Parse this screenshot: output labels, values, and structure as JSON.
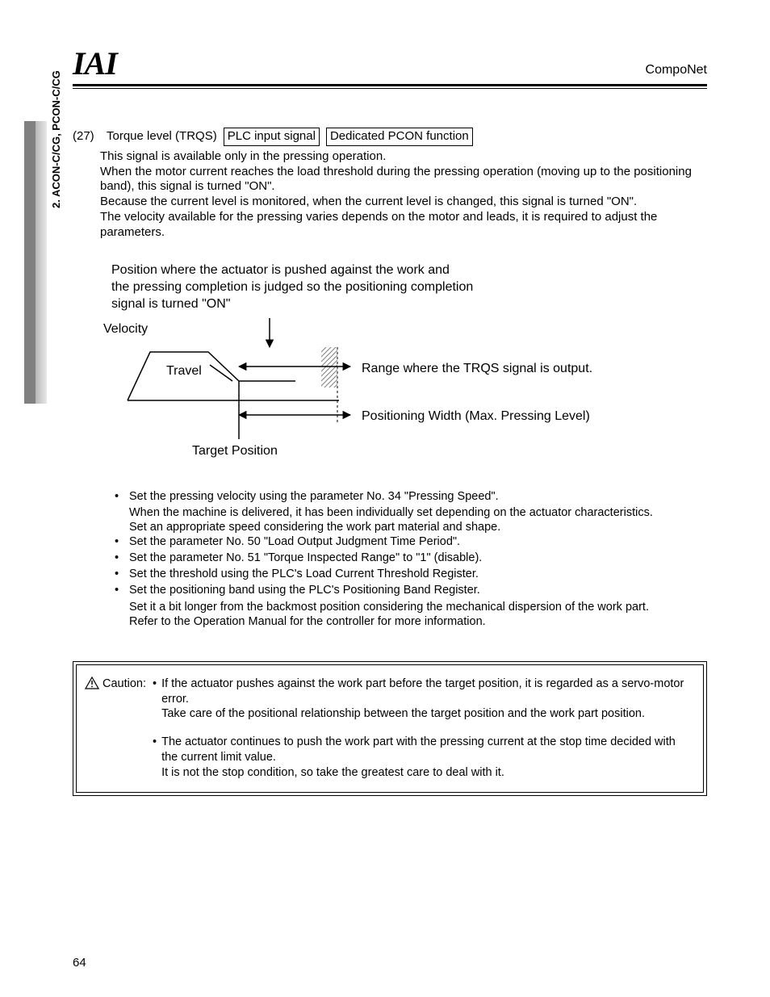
{
  "header": {
    "logo": "IAI",
    "product": "CompoNet"
  },
  "side_tab_text": "2. ACON-C/CG, PCON-C/CG",
  "section": {
    "number": "(27)",
    "title_prefix": "Torque level (TRQS)",
    "box1": "PLC input signal",
    "box2": "Dedicated PCON function",
    "paragraph": "This signal is available only in the pressing operation.\nWhen the motor current reaches the load threshold during the pressing operation (moving up to the positioning band), this signal is turned \"ON\".\nBecause the current level is monitored, when the current level is changed, this signal is turned \"ON\".\nThe velocity available for the pressing varies depends on the motor and leads, it is required to adjust the parameters."
  },
  "diagram": {
    "caption": "Position where the actuator is pushed against the work and\nthe pressing completion is judged so the positioning completion\nsignal is turned \"ON\"",
    "labels": {
      "velocity": "Velocity",
      "travel": "Travel",
      "range": "Range where the TRQS signal is output.",
      "poswidth": "Positioning Width (Max. Pressing Level)",
      "target": "Target Position"
    },
    "colors": {
      "hatch": "#808080",
      "stroke": "#000000"
    }
  },
  "bullets": [
    {
      "line": "Set the pressing velocity using the parameter No. 34 \"Pressing Speed\".",
      "cont": [
        "When the machine is delivered, it has been individually set depending on the actuator characteristics.",
        "Set an appropriate speed considering the work part material and shape."
      ]
    },
    {
      "line": "Set the parameter No. 50 \"Load Output Judgment Time Period\"."
    },
    {
      "line": "Set the parameter No. 51 \"Torque Inspected Range\" to \"1\" (disable)."
    },
    {
      "line": "Set the threshold using the PLC's Load Current Threshold Register."
    },
    {
      "line": "Set the positioning band using the PLC's Positioning Band Register.",
      "cont": [
        "Set it a bit longer from the backmost position considering the mechanical dispersion of the work part.",
        "Refer to the Operation Manual for the controller for more information."
      ]
    }
  ],
  "caution": {
    "label": "Caution:",
    "items": [
      {
        "line": "If the actuator pushes against the work part before the target position, it is regarded as a servo-motor error.",
        "cont": [
          "Take care of the positional relationship between the target position and the work part position."
        ]
      },
      {
        "line": "The actuator continues to push the work part with the pressing current at the stop time decided with the current limit value.",
        "cont": [
          "It is not the stop condition, so take the greatest care to deal with it."
        ]
      }
    ]
  },
  "page_number": "64"
}
